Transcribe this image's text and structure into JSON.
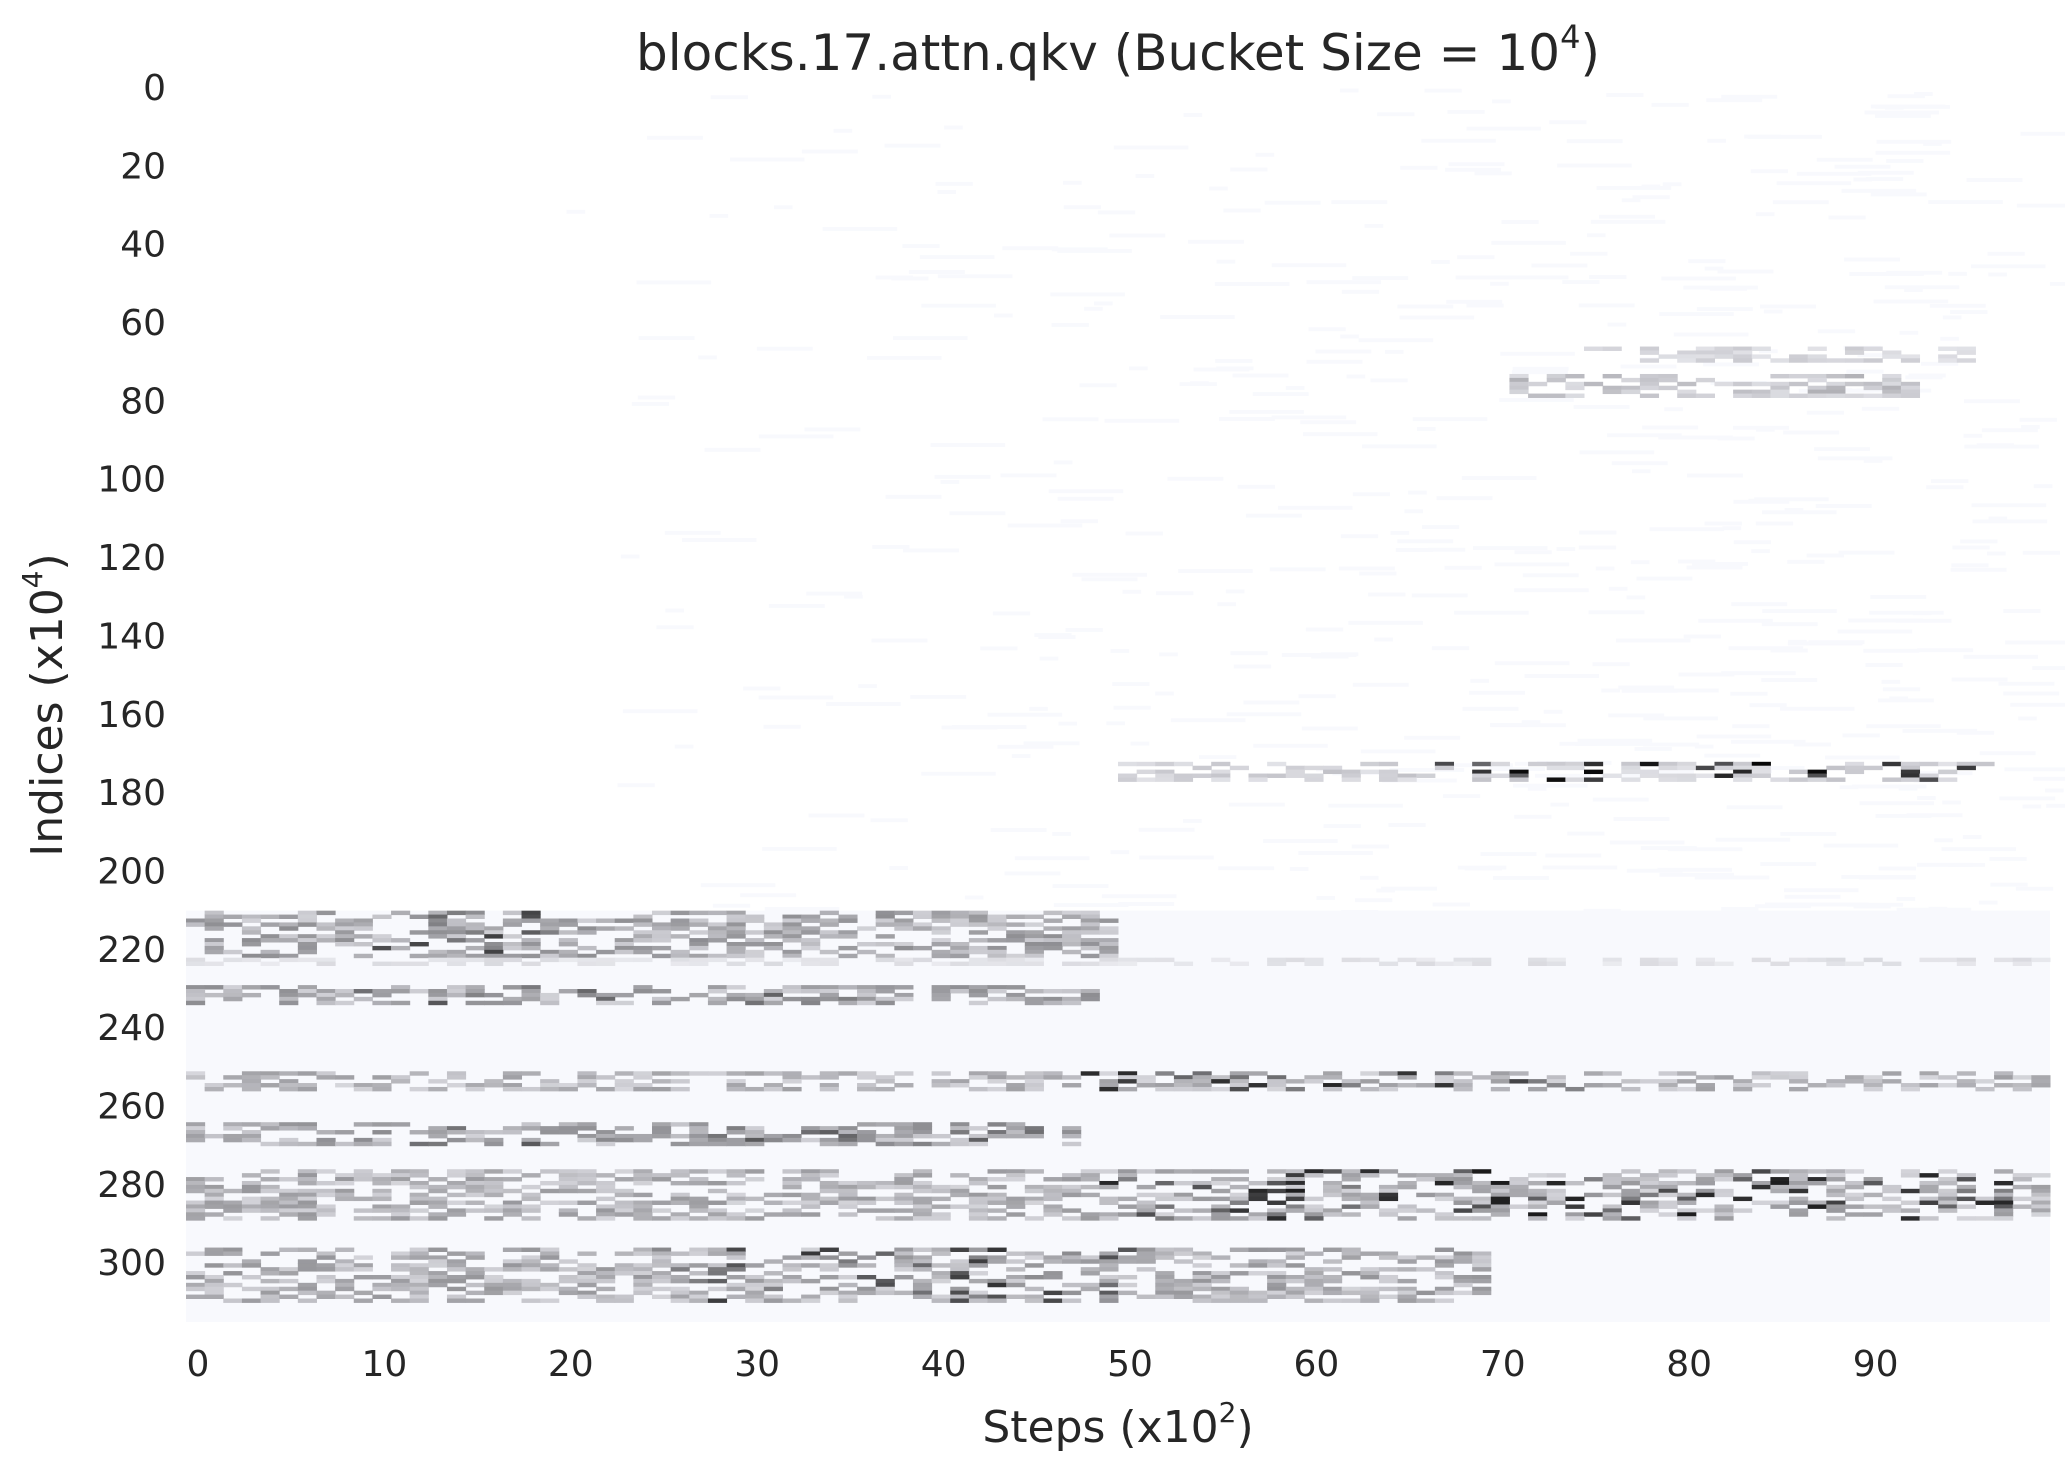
{
  "chart_data": {
    "type": "heatmap",
    "title": {
      "text": "blocks.17.attn.qkv (Bucket Size = 10",
      "exponent": "4",
      "suffix": ")"
    },
    "xlabel": {
      "text": "Steps (x10",
      "exponent": "2",
      "suffix": ")"
    },
    "ylabel": {
      "text": "Indices (x10",
      "exponent": "4",
      "suffix": ")"
    },
    "x_ticks": [
      "0",
      "10",
      "20",
      "30",
      "40",
      "50",
      "60",
      "70",
      "80",
      "90"
    ],
    "x_tick_values": [
      0,
      10,
      20,
      30,
      40,
      50,
      60,
      70,
      80,
      90
    ],
    "y_ticks": [
      "0",
      "20",
      "40",
      "60",
      "80",
      "100",
      "120",
      "140",
      "160",
      "180",
      "200",
      "220",
      "240",
      "260",
      "280",
      "300"
    ],
    "y_tick_values": [
      0,
      20,
      40,
      60,
      80,
      100,
      120,
      140,
      160,
      180,
      200,
      220,
      240,
      260,
      280,
      300
    ],
    "xlim": [
      0,
      100
    ],
    "ylim": [
      0,
      315
    ],
    "grid": false,
    "colormap": [
      "#f8f9fd",
      "#cacad0",
      "#8a8a8e",
      "#3a3a3c",
      "#050505"
    ],
    "background_color": "#ffffff",
    "bands": [
      {
        "y": [
          210,
          222
        ],
        "x": [
          0,
          50
        ],
        "level": 0.35,
        "peak_x": [
          10,
          20
        ],
        "peak": 0.65
      },
      {
        "y": [
          222,
          224
        ],
        "x": [
          0,
          100
        ],
        "level": 0.12
      },
      {
        "y": [
          229,
          234
        ],
        "x": [
          0,
          49
        ],
        "level": 0.35,
        "peak_x": [
          8,
          35
        ],
        "peak": 0.55
      },
      {
        "y": [
          251,
          256
        ],
        "x": [
          0,
          100
        ],
        "level": 0.3,
        "peak_x": [
          47,
          75
        ],
        "peak": 0.7
      },
      {
        "y": [
          264,
          270
        ],
        "x": [
          0,
          48
        ],
        "level": 0.35,
        "peak_x": [
          10,
          45
        ],
        "peak": 0.55
      },
      {
        "y": [
          276,
          289
        ],
        "x": [
          0,
          100
        ],
        "level": 0.32,
        "peak_x": [
          49,
          97
        ],
        "peak": 0.75
      },
      {
        "y": [
          296,
          310
        ],
        "x": [
          0,
          70
        ],
        "level": 0.33,
        "peak_x": [
          25,
          50
        ],
        "peak": 0.65
      },
      {
        "y": [
          172,
          177
        ],
        "x": [
          50,
          97
        ],
        "level": 0.2,
        "peak_x": [
          65,
          97
        ],
        "peak": 0.85
      },
      {
        "y": [
          66,
          70
        ],
        "x": [
          75,
          96
        ],
        "level": 0.18
      },
      {
        "y": [
          73,
          79
        ],
        "x": [
          71,
          93
        ],
        "level": 0.25
      }
    ]
  }
}
